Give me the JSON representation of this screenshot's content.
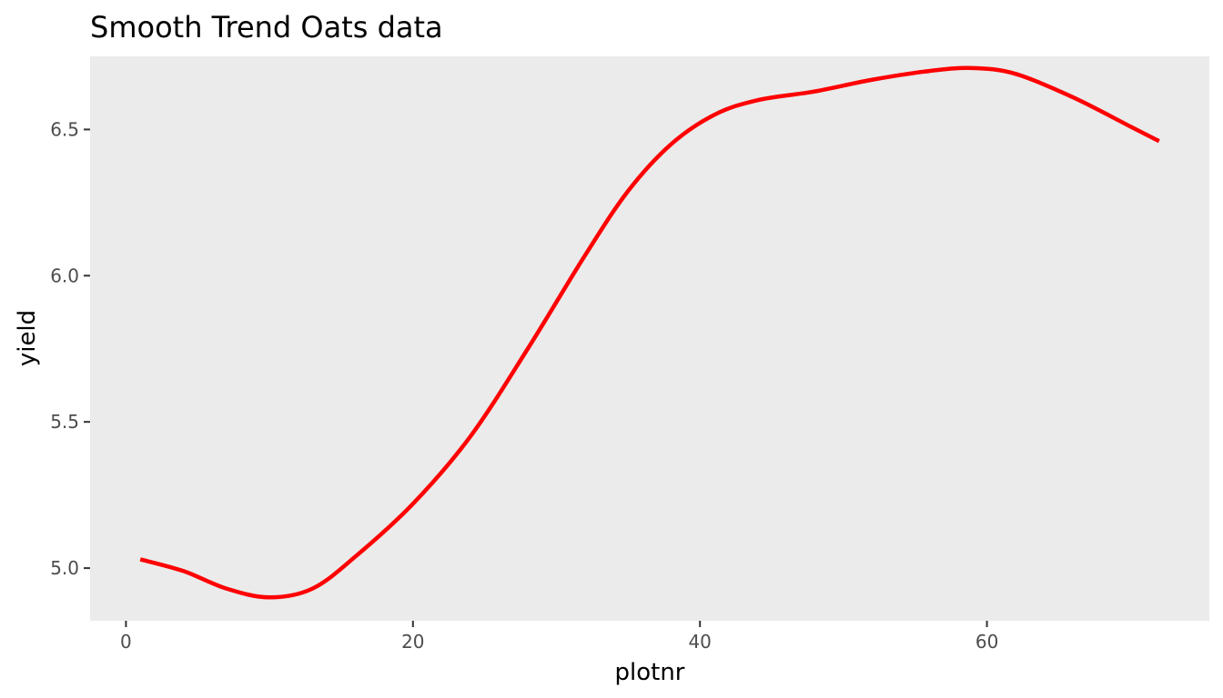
{
  "chart_data": {
    "type": "line",
    "title": "Smooth Trend Oats data",
    "xlabel": "plotnr",
    "ylabel": "yield",
    "xlim": [
      -2.5,
      75.5
    ],
    "ylim": [
      4.82,
      6.75
    ],
    "xticks": [
      0,
      20,
      40,
      60
    ],
    "xtick_labels": [
      "0",
      "20",
      "40",
      "60"
    ],
    "yticks": [
      5.0,
      5.5,
      6.0,
      6.5
    ],
    "ytick_labels": [
      "5.0",
      "5.5",
      "6.0",
      "6.5"
    ],
    "grid": false,
    "background": "#ebebeb",
    "series": [
      {
        "color": "#ff0000",
        "x": [
          1,
          4,
          7,
          10,
          13,
          16,
          20,
          24,
          28,
          32,
          35,
          38,
          41,
          44,
          48,
          52,
          56,
          59,
          62,
          66,
          70,
          72
        ],
        "y": [
          5.03,
          4.99,
          4.93,
          4.9,
          4.93,
          5.04,
          5.22,
          5.45,
          5.75,
          6.07,
          6.29,
          6.45,
          6.55,
          6.6,
          6.63,
          6.67,
          6.7,
          6.71,
          6.69,
          6.61,
          6.51,
          6.46
        ]
      }
    ]
  }
}
